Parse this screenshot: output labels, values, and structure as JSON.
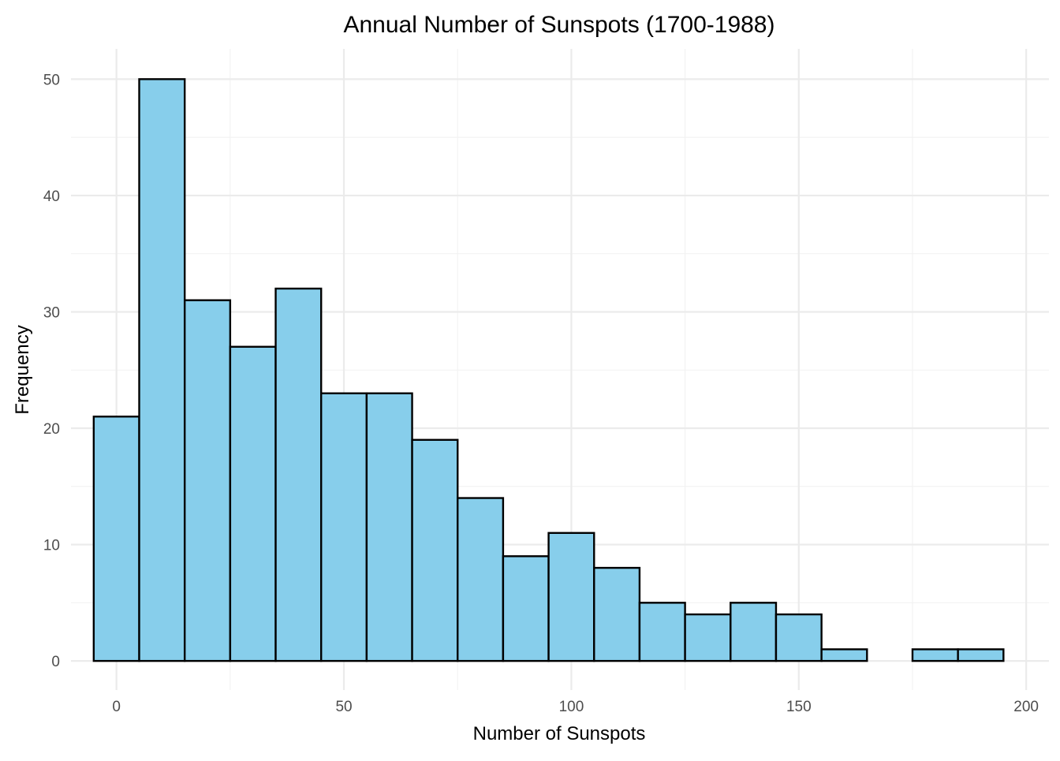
{
  "chart_data": {
    "type": "bar",
    "title": "Annual Number of Sunspots (1700-1988)",
    "xlabel": "Number of Sunspots",
    "ylabel": "Frequency",
    "xlim": [
      -10,
      205
    ],
    "ylim": [
      -2.5,
      52.6
    ],
    "x_ticks": [
      0,
      50,
      100,
      150,
      200
    ],
    "y_ticks": [
      0,
      10,
      20,
      30,
      40,
      50
    ],
    "grid": true,
    "bin_width": 10,
    "bin_edges": [
      -5,
      5,
      15,
      25,
      35,
      45,
      55,
      65,
      75,
      85,
      95,
      105,
      115,
      125,
      135,
      145,
      155,
      165,
      175,
      185,
      195
    ],
    "values": [
      21,
      50,
      31,
      27,
      32,
      23,
      23,
      19,
      14,
      9,
      11,
      8,
      5,
      4,
      5,
      4,
      1,
      0,
      1,
      1
    ],
    "colors": {
      "fill": "#87ceeb",
      "outline": "#000000"
    }
  }
}
